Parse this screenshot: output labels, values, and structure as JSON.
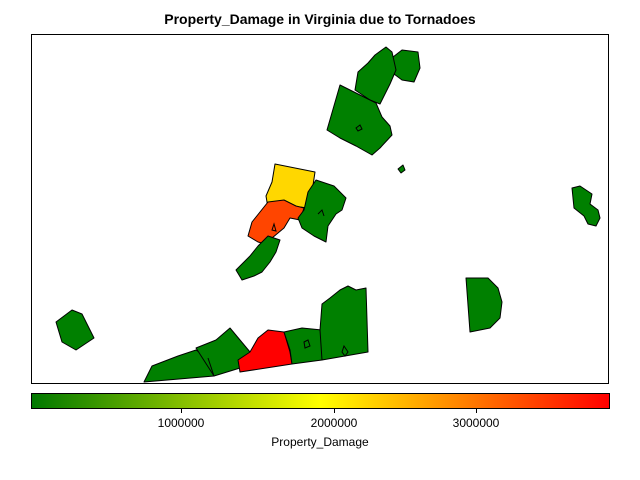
{
  "title": "Property_Damage in Virginia due to Tornadoes",
  "colors": {
    "low": "#007800",
    "mid": "#ffff00",
    "high": "#ff0000",
    "county_green": "#008000",
    "county_yellow": "#ffd700",
    "county_orange": "#ff4500",
    "county_red": "#ff0000"
  },
  "colorbar": {
    "title": "Property_Damage",
    "ticks": [
      "1000000",
      "2000000",
      "3000000"
    ]
  }
}
